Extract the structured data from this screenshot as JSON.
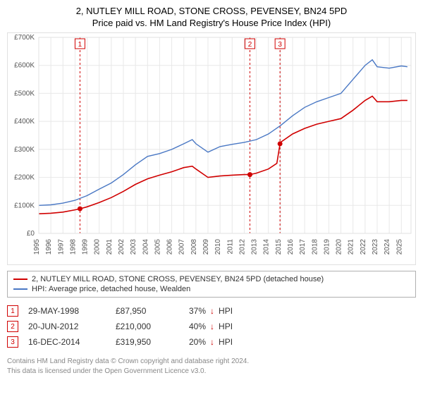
{
  "title": "2, NUTLEY MILL ROAD, STONE CROSS, PEVENSEY, BN24 5PD",
  "subtitle": "Price paid vs. HM Land Registry's House Price Index (HPI)",
  "chart": {
    "type": "line",
    "background_color": "#ffffff",
    "grid_color": "#e8e8e8",
    "border_color": "#e0e0e0",
    "text_color": "#555555",
    "axis_fontsize": 10,
    "xlim": [
      1995,
      2025.8
    ],
    "ylim": [
      0,
      700000
    ],
    "xticks": [
      1995,
      1996,
      1997,
      1998,
      1999,
      2000,
      2001,
      2002,
      2003,
      2004,
      2005,
      2006,
      2007,
      2008,
      2009,
      2010,
      2011,
      2012,
      2013,
      2014,
      2015,
      2016,
      2017,
      2018,
      2019,
      2020,
      2021,
      2022,
      2023,
      2024,
      2025
    ],
    "yticks": [
      0,
      100000,
      200000,
      300000,
      400000,
      500000,
      600000,
      700000
    ],
    "ytick_labels": [
      "£0",
      "£100K",
      "£200K",
      "£300K",
      "£400K",
      "£500K",
      "£600K",
      "£700K"
    ],
    "series": [
      {
        "name": "price_paid",
        "label": "2, NUTLEY MILL ROAD, STONE CROSS, PEVENSEY, BN24 5PD (detached house)",
        "color": "#d00000",
        "line_width": 1.6,
        "marker_color": "#d00000",
        "marker_radius": 3.5,
        "markers_at": [
          1998.41,
          2012.47,
          2014.96
        ],
        "points": [
          [
            1995.0,
            70000
          ],
          [
            1996.0,
            72000
          ],
          [
            1997.0,
            76000
          ],
          [
            1998.0,
            84000
          ],
          [
            1998.41,
            87950
          ],
          [
            1999.0,
            95000
          ],
          [
            2000.0,
            110000
          ],
          [
            2001.0,
            128000
          ],
          [
            2002.0,
            150000
          ],
          [
            2003.0,
            175000
          ],
          [
            2004.0,
            195000
          ],
          [
            2005.0,
            208000
          ],
          [
            2006.0,
            220000
          ],
          [
            2007.0,
            235000
          ],
          [
            2007.7,
            240000
          ],
          [
            2008.0,
            230000
          ],
          [
            2009.0,
            200000
          ],
          [
            2010.0,
            205000
          ],
          [
            2011.0,
            208000
          ],
          [
            2012.0,
            210000
          ],
          [
            2012.47,
            210000
          ],
          [
            2013.0,
            215000
          ],
          [
            2014.0,
            230000
          ],
          [
            2014.7,
            250000
          ],
          [
            2014.96,
            319950
          ],
          [
            2015.0,
            325000
          ],
          [
            2016.0,
            355000
          ],
          [
            2017.0,
            375000
          ],
          [
            2018.0,
            390000
          ],
          [
            2019.0,
            400000
          ],
          [
            2020.0,
            410000
          ],
          [
            2021.0,
            440000
          ],
          [
            2022.0,
            475000
          ],
          [
            2022.6,
            490000
          ],
          [
            2023.0,
            470000
          ],
          [
            2024.0,
            470000
          ],
          [
            2025.0,
            475000
          ],
          [
            2025.5,
            475000
          ]
        ]
      },
      {
        "name": "hpi",
        "label": "HPI: Average price, detached house, Wealden",
        "color": "#4a78c4",
        "line_width": 1.4,
        "points": [
          [
            1995.0,
            100000
          ],
          [
            1996.0,
            102000
          ],
          [
            1997.0,
            108000
          ],
          [
            1998.0,
            118000
          ],
          [
            1999.0,
            135000
          ],
          [
            2000.0,
            158000
          ],
          [
            2001.0,
            180000
          ],
          [
            2002.0,
            210000
          ],
          [
            2003.0,
            245000
          ],
          [
            2004.0,
            275000
          ],
          [
            2005.0,
            285000
          ],
          [
            2006.0,
            300000
          ],
          [
            2007.0,
            320000
          ],
          [
            2007.7,
            335000
          ],
          [
            2008.0,
            320000
          ],
          [
            2009.0,
            290000
          ],
          [
            2010.0,
            310000
          ],
          [
            2011.0,
            318000
          ],
          [
            2012.0,
            325000
          ],
          [
            2013.0,
            335000
          ],
          [
            2014.0,
            355000
          ],
          [
            2015.0,
            385000
          ],
          [
            2016.0,
            420000
          ],
          [
            2017.0,
            450000
          ],
          [
            2018.0,
            470000
          ],
          [
            2019.0,
            485000
          ],
          [
            2020.0,
            500000
          ],
          [
            2021.0,
            550000
          ],
          [
            2022.0,
            600000
          ],
          [
            2022.6,
            620000
          ],
          [
            2023.0,
            595000
          ],
          [
            2024.0,
            590000
          ],
          [
            2025.0,
            598000
          ],
          [
            2025.5,
            595000
          ]
        ]
      }
    ],
    "vlines": [
      {
        "x": 1998.41,
        "n": 1,
        "color": "#d00000",
        "dash": "3,3"
      },
      {
        "x": 2012.47,
        "n": 2,
        "color": "#d00000",
        "dash": "3,3"
      },
      {
        "x": 2014.96,
        "n": 3,
        "color": "#d00000",
        "dash": "3,3"
      }
    ]
  },
  "legend": {
    "border_color": "#b0b0b0",
    "items": [
      {
        "label_ref": "price_paid",
        "color": "#d00000"
      },
      {
        "label_ref": "hpi",
        "color": "#4a78c4"
      }
    ]
  },
  "transactions": [
    {
      "n": 1,
      "date": "29-MAY-1998",
      "price": "£87,950",
      "diff": "37%",
      "rel": "HPI",
      "arrow": "↓"
    },
    {
      "n": 2,
      "date": "20-JUN-2012",
      "price": "£210,000",
      "diff": "40%",
      "rel": "HPI",
      "arrow": "↓"
    },
    {
      "n": 3,
      "date": "16-DEC-2014",
      "price": "£319,950",
      "diff": "20%",
      "rel": "HPI",
      "arrow": "↓"
    }
  ],
  "attribution": {
    "line1": "Contains HM Land Registry data © Crown copyright and database right 2024.",
    "line2": "This data is licensed under the Open Government Licence v3.0."
  }
}
